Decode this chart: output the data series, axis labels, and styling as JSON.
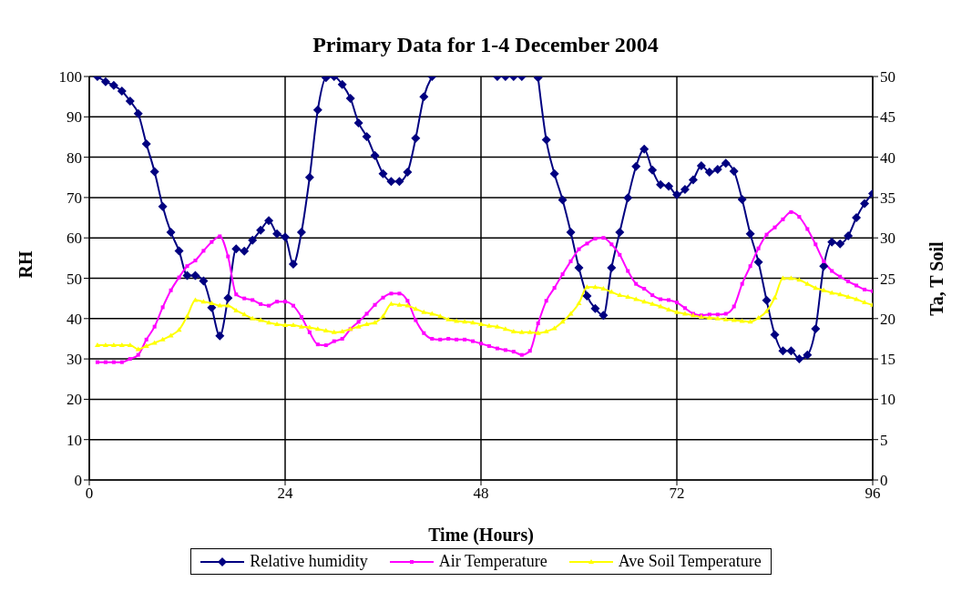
{
  "chart_data": {
    "type": "line",
    "title": "Primary Data for 1-4 December 2004",
    "xlabel": "Time (Hours)",
    "ylabel": "RH",
    "y2label": "Ta, T Soil",
    "xlim": [
      0,
      96
    ],
    "xticks": [
      0,
      24,
      48,
      72,
      96
    ],
    "ylim": [
      0,
      100
    ],
    "yticks": [
      0,
      10,
      20,
      30,
      40,
      50,
      60,
      70,
      80,
      90,
      100
    ],
    "y2lim": [
      0,
      50
    ],
    "y2ticks": [
      0,
      5,
      10,
      15,
      20,
      25,
      30,
      35,
      40,
      45,
      50
    ],
    "grid": true,
    "legend": "bottom",
    "line_style": "solid",
    "series": [
      {
        "name": "Relative humidity",
        "color": "#000080",
        "marker": "diamond",
        "x": [
          1,
          2,
          3,
          4,
          5,
          6,
          7,
          8,
          9,
          10,
          11,
          12,
          13,
          14,
          15,
          16,
          17,
          18,
          19,
          20,
          21,
          22,
          23,
          24,
          25,
          26,
          27,
          28,
          29,
          30,
          31,
          32,
          33,
          34,
          35,
          36,
          37,
          38,
          39,
          40,
          41,
          42,
          43,
          44,
          45,
          46,
          47,
          48,
          49,
          50,
          51,
          52,
          53,
          54,
          55,
          56,
          57,
          58,
          59,
          60,
          61,
          62,
          63,
          64,
          65,
          66,
          67,
          68,
          69,
          70,
          71,
          72,
          73,
          74,
          75,
          76,
          77,
          78,
          79,
          80,
          81,
          82,
          83,
          84,
          85,
          86,
          87,
          88,
          89,
          90,
          91,
          92,
          93,
          94,
          95,
          96
        ],
        "values": [
          100,
          98.7,
          97.8,
          96.4,
          93.9,
          90.8,
          83.3,
          76.4,
          67.8,
          61.4,
          56.8,
          50.7,
          50.7,
          49.3,
          42.7,
          35.7,
          45.1,
          57.3,
          56.7,
          59.4,
          61.9,
          64.3,
          61,
          60.2,
          53.5,
          61.4,
          75,
          91.7,
          99.7,
          100,
          98,
          94.6,
          88.5,
          85.1,
          80.4,
          75.9,
          74,
          74,
          76.3,
          84.7,
          95,
          100,
          null,
          null,
          null,
          null,
          null,
          null,
          null,
          100,
          100,
          100,
          100,
          null,
          99.7,
          84.3,
          75.9,
          69.4,
          61.4,
          52.6,
          45.6,
          42.5,
          40.8,
          52.6,
          61.4,
          69.9,
          77.7,
          82,
          76.8,
          73.2,
          72.8,
          70.7,
          72,
          74.4,
          77.9,
          76.3,
          77,
          78.5,
          76.5,
          69.5,
          61,
          54,
          44.5,
          36,
          32,
          32,
          30,
          31,
          37.5,
          53,
          59,
          58.5,
          60.5,
          65,
          68.5,
          71
        ]
      },
      {
        "name": "Air Temperature",
        "color": "#ff00ff",
        "marker": "square",
        "axis": "y2",
        "x": [
          1,
          2,
          3,
          4,
          5,
          6,
          7,
          8,
          9,
          10,
          11,
          12,
          13,
          14,
          15,
          16,
          17,
          18,
          19,
          20,
          21,
          22,
          23,
          24,
          25,
          26,
          27,
          28,
          29,
          30,
          31,
          32,
          33,
          34,
          35,
          36,
          37,
          38,
          39,
          40,
          41,
          42,
          43,
          44,
          45,
          46,
          47,
          48,
          49,
          50,
          51,
          52,
          53,
          54,
          55,
          56,
          57,
          58,
          59,
          60,
          61,
          62,
          63,
          64,
          65,
          66,
          67,
          68,
          69,
          70,
          71,
          72,
          73,
          74,
          75,
          76,
          77,
          78,
          79,
          80,
          81,
          82,
          83,
          84,
          85,
          86,
          87,
          88,
          89,
          90,
          91,
          92,
          93,
          94,
          95,
          96
        ],
        "values": [
          14.6,
          14.6,
          14.6,
          14.6,
          15,
          15.5,
          17.4,
          19,
          21.4,
          23.5,
          25.1,
          26.5,
          27.2,
          28.4,
          29.5,
          30.2,
          27.7,
          23,
          22.5,
          22.3,
          21.8,
          21.6,
          22.1,
          22.1,
          21.6,
          20.2,
          18.3,
          16.8,
          16.7,
          17.2,
          17.5,
          18.7,
          19.6,
          20.6,
          21.7,
          22.6,
          23.1,
          23.1,
          22.2,
          19.8,
          18.2,
          17.5,
          17.4,
          17.5,
          17.4,
          17.4,
          17.2,
          16.9,
          16.6,
          16.3,
          16.1,
          15.9,
          15.5,
          16,
          19.4,
          22.2,
          23.8,
          25.5,
          27.1,
          28.6,
          29.3,
          29.9,
          30,
          29.2,
          27.9,
          25.9,
          24.3,
          23.7,
          22.9,
          22.4,
          22.3,
          22,
          21.3,
          20.6,
          20.4,
          20.5,
          20.5,
          20.6,
          21.5,
          24.3,
          26.5,
          28.7,
          30.4,
          31.3,
          32.3,
          33.2,
          32.6,
          31.1,
          29.2,
          27.1,
          25.9,
          25.2,
          24.6,
          24.1,
          23.6,
          23.4
        ]
      },
      {
        "name": "Ave Soil Temperature",
        "color": "#ffff00",
        "marker": "triangle",
        "axis": "y2",
        "x": [
          1,
          2,
          3,
          4,
          5,
          6,
          7,
          8,
          9,
          10,
          11,
          12,
          13,
          14,
          15,
          16,
          17,
          18,
          19,
          20,
          21,
          22,
          23,
          24,
          25,
          26,
          27,
          28,
          29,
          30,
          31,
          32,
          33,
          34,
          35,
          36,
          37,
          38,
          39,
          40,
          41,
          42,
          43,
          44,
          45,
          46,
          47,
          48,
          49,
          50,
          51,
          52,
          53,
          54,
          55,
          56,
          57,
          58,
          59,
          60,
          61,
          62,
          63,
          64,
          65,
          66,
          67,
          68,
          69,
          70,
          71,
          72,
          73,
          74,
          75,
          76,
          77,
          78,
          79,
          80,
          81,
          82,
          83,
          84,
          85,
          86,
          87,
          88,
          89,
          90,
          91,
          92,
          93,
          94,
          95,
          96
        ],
        "values": [
          16.7,
          16.7,
          16.7,
          16.7,
          16.7,
          16.2,
          16.6,
          17,
          17.4,
          17.9,
          18.6,
          20.3,
          22.3,
          22.1,
          21.9,
          21.6,
          21.6,
          21,
          20.5,
          20,
          19.8,
          19.5,
          19.3,
          19.2,
          19.2,
          19,
          18.9,
          18.7,
          18.5,
          18.3,
          18.4,
          18.7,
          19,
          19.3,
          19.5,
          20.3,
          21.8,
          21.7,
          21.6,
          21.2,
          20.8,
          20.6,
          20.3,
          19.9,
          19.7,
          19.6,
          19.5,
          19.3,
          19.1,
          19,
          18.7,
          18.4,
          18.3,
          18.3,
          18.2,
          18.4,
          18.8,
          19.6,
          20.6,
          21.9,
          23.9,
          23.9,
          23.7,
          23.3,
          22.9,
          22.7,
          22.4,
          22.1,
          21.8,
          21.5,
          21.1,
          20.8,
          20.6,
          20.4,
          20.2,
          20.1,
          20,
          19.9,
          19.8,
          19.7,
          19.6,
          20.1,
          20.9,
          22.6,
          25,
          25,
          24.8,
          24.3,
          23.8,
          23.5,
          23.2,
          23,
          22.7,
          22.4,
          22,
          21.7
        ]
      }
    ]
  }
}
